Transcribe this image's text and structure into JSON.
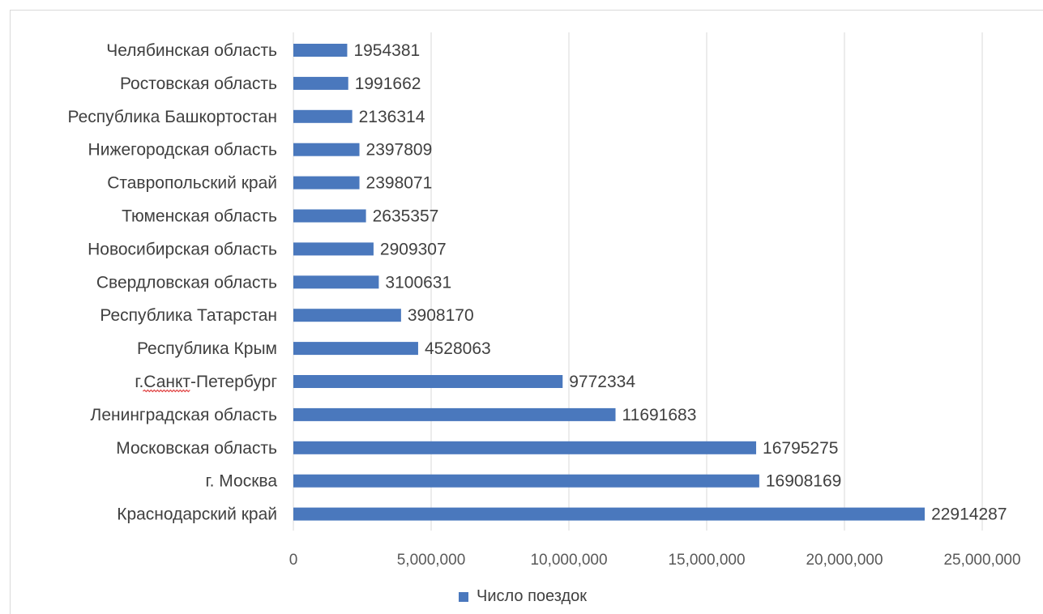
{
  "chart_data": {
    "type": "bar",
    "orientation": "horizontal",
    "title": "",
    "xlabel": "",
    "ylabel": "",
    "categories": [
      "Челябинская область",
      "Ростовская область",
      "Республика Башкортостан",
      "Нижегородская область",
      "Ставропольский край",
      "Тюменская область",
      "Новосибирская область",
      "Свердловская область",
      "Республика Татарстан",
      "Республика Крым",
      "г.Санкт-Петербург",
      "Ленинградская область",
      "Московская область",
      "г. Москва",
      "Краснодарский край"
    ],
    "series": [
      {
        "name": "Число поездок",
        "color": "#4a78bd",
        "values": [
          1954381,
          1991662,
          2136314,
          2397809,
          2398071,
          2635357,
          2909307,
          3100631,
          3908170,
          4528063,
          9772334,
          11691683,
          16795275,
          16908169,
          22914287
        ]
      }
    ],
    "data_labels": [
      "1954381",
      "1991662",
      "2136314",
      "2397809",
      "2398071",
      "2635357",
      "2909307",
      "3100631",
      "3908170",
      "4528063",
      "9772334",
      "11691683",
      "16795275",
      "16908169",
      "22914287"
    ],
    "xlim": [
      0,
      25000000
    ],
    "x_ticks": [
      0,
      5000000,
      10000000,
      15000000,
      20000000,
      25000000
    ],
    "x_tick_labels": [
      "0",
      "5,000,000",
      "10,000,000",
      "15,000,000",
      "20,000,000",
      "25,000,000"
    ],
    "grid": true,
    "gridline_color": "#d9d9d9",
    "legend": {
      "position": "bottom",
      "label": "Число поездок"
    },
    "spellcheck_marked_word": "г.Санкт"
  }
}
